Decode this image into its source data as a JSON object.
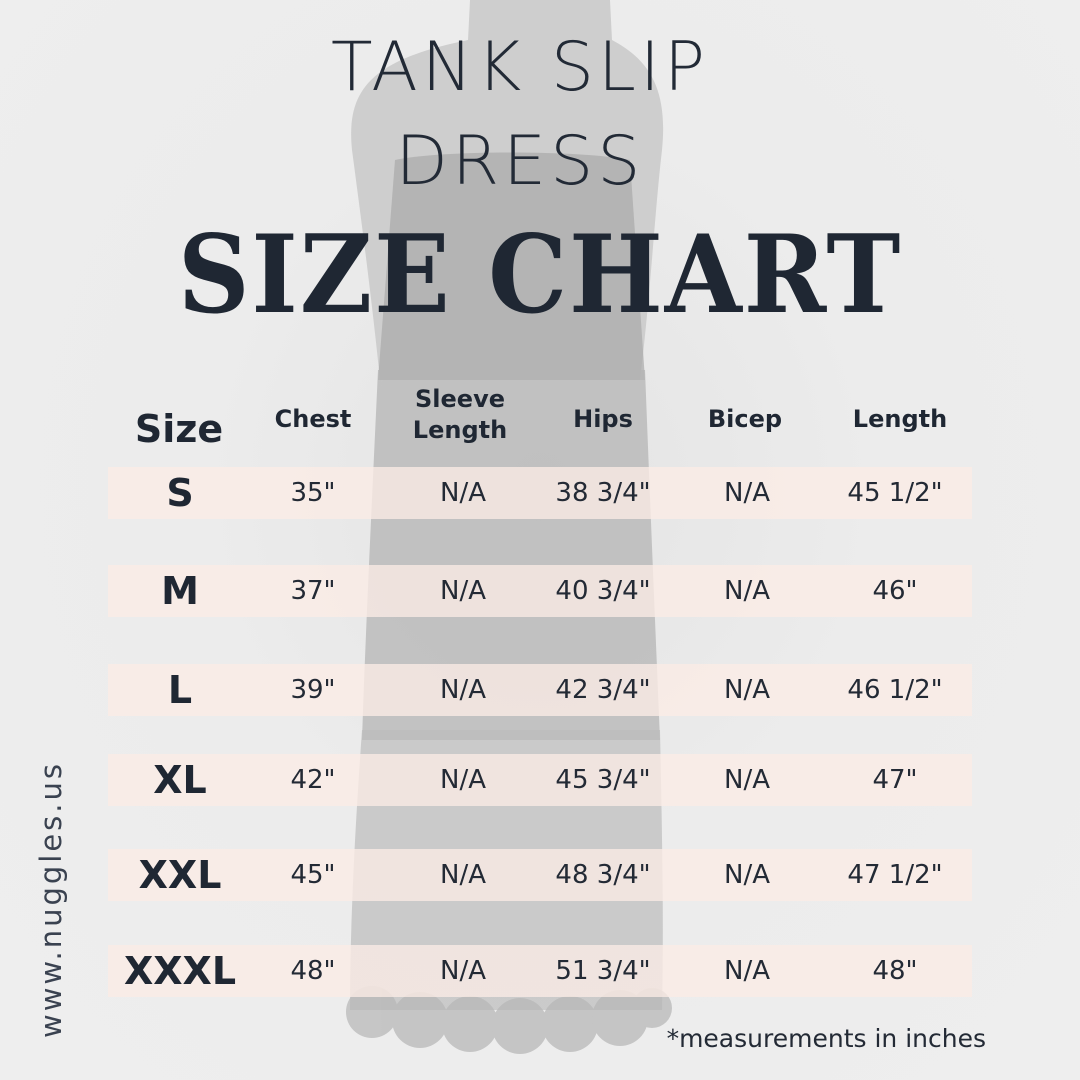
{
  "title": {
    "line1": "TANK SLIP",
    "line2": "DRESS",
    "line3": "SIZE CHART"
  },
  "table": {
    "headers": {
      "size": "Size",
      "chest": "Chest",
      "sleeve_line1": "Sleeve",
      "sleeve_line2": "Length",
      "hips": "Hips",
      "bicep": "Bicep",
      "length": "Length"
    },
    "rows": [
      {
        "size": "S",
        "chest": "35\"",
        "sleeve": "N/A",
        "hips": "38 3/4\"",
        "bicep": "N/A",
        "length": "45 1/2\""
      },
      {
        "size": "M",
        "chest": "37\"",
        "sleeve": "N/A",
        "hips": "40 3/4\"",
        "bicep": "N/A",
        "length": "46\""
      },
      {
        "size": "L",
        "chest": "39\"",
        "sleeve": "N/A",
        "hips": "42 3/4\"",
        "bicep": "N/A",
        "length": "46 1/2\""
      },
      {
        "size": "XL",
        "chest": "42\"",
        "sleeve": "N/A",
        "hips": "45 3/4\"",
        "bicep": "N/A",
        "length": "47\""
      },
      {
        "size": "XXL",
        "chest": "45\"",
        "sleeve": "N/A",
        "hips": "48 3/4\"",
        "bicep": "N/A",
        "length": "47 1/2\""
      },
      {
        "size": "XXXL",
        "chest": "48\"",
        "sleeve": "N/A",
        "hips": "51 3/4\"",
        "bicep": "N/A",
        "length": "48\""
      }
    ]
  },
  "website": "www.nuggles.us",
  "footnote": "*measurements in inches",
  "colors": {
    "background": "#ececec",
    "text": "#1f2733",
    "row_highlight": "#fbece6"
  }
}
